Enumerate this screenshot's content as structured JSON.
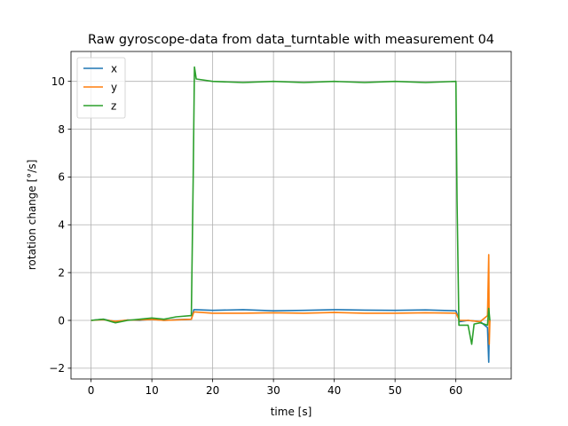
{
  "chart_data": {
    "type": "line",
    "title": "Raw gyroscope-data from data_turntable with measurement 04",
    "xlabel": "time [s]",
    "ylabel": "rotation change [°/s]",
    "xlim": [
      -3.3,
      69.1
    ],
    "ylim": [
      -2.45,
      11.25
    ],
    "xticks": [
      0,
      10,
      20,
      30,
      40,
      50,
      60
    ],
    "yticks": [
      -2,
      0,
      2,
      4,
      6,
      8,
      10
    ],
    "grid": true,
    "legend_position": "top-left",
    "series": [
      {
        "name": "x",
        "color": "#1f77b4",
        "x": [
          0,
          2,
          4,
          6,
          8,
          10,
          12,
          14,
          16.5,
          16.9,
          17.2,
          20,
          25,
          30,
          35,
          40,
          45,
          50,
          55,
          60,
          60.3,
          60.6,
          62,
          64,
          65.2,
          65.4,
          65.5,
          65.6
        ],
        "y": [
          0,
          0.05,
          -0.05,
          0.02,
          0,
          0.05,
          0,
          0.03,
          0.05,
          0.45,
          0.45,
          0.42,
          0.45,
          0.4,
          0.42,
          0.45,
          0.43,
          0.42,
          0.44,
          0.4,
          0.2,
          -0.05,
          0,
          -0.05,
          -0.3,
          -1.75,
          -0.2,
          0
        ]
      },
      {
        "name": "y",
        "color": "#ff7f0e",
        "x": [
          0,
          2,
          4,
          6,
          8,
          10,
          12,
          14,
          16.5,
          16.9,
          17.2,
          20,
          25,
          30,
          35,
          40,
          45,
          50,
          55,
          60,
          60.3,
          60.6,
          62,
          64,
          65.2,
          65.4,
          65.5,
          65.6
        ],
        "y": [
          0,
          0.03,
          -0.04,
          0.01,
          0.02,
          0.04,
          0,
          0.02,
          0.05,
          0.35,
          0.35,
          0.3,
          0.3,
          0.32,
          0.3,
          0.33,
          0.3,
          0.3,
          0.32,
          0.3,
          0.15,
          0,
          0,
          -0.05,
          0.2,
          2.75,
          -1.0,
          0
        ]
      },
      {
        "name": "z",
        "color": "#2ca02c",
        "x": [
          0,
          2,
          4,
          6,
          8,
          10,
          12,
          14,
          16.5,
          16.8,
          17.0,
          17.3,
          20,
          25,
          30,
          35,
          40,
          45,
          50,
          55,
          60,
          60.2,
          60.5,
          62,
          62.6,
          63,
          64,
          65.2,
          65.4,
          65.6
        ],
        "y": [
          0,
          0.05,
          -0.1,
          0,
          0.05,
          0.1,
          0.05,
          0.15,
          0.2,
          6.0,
          10.6,
          10.1,
          10.0,
          9.95,
          10.0,
          9.95,
          10.0,
          9.95,
          10.0,
          9.95,
          10.0,
          5.0,
          -0.2,
          -0.2,
          -1.0,
          -0.15,
          -0.1,
          -0.2,
          0.5,
          0
        ]
      }
    ]
  }
}
